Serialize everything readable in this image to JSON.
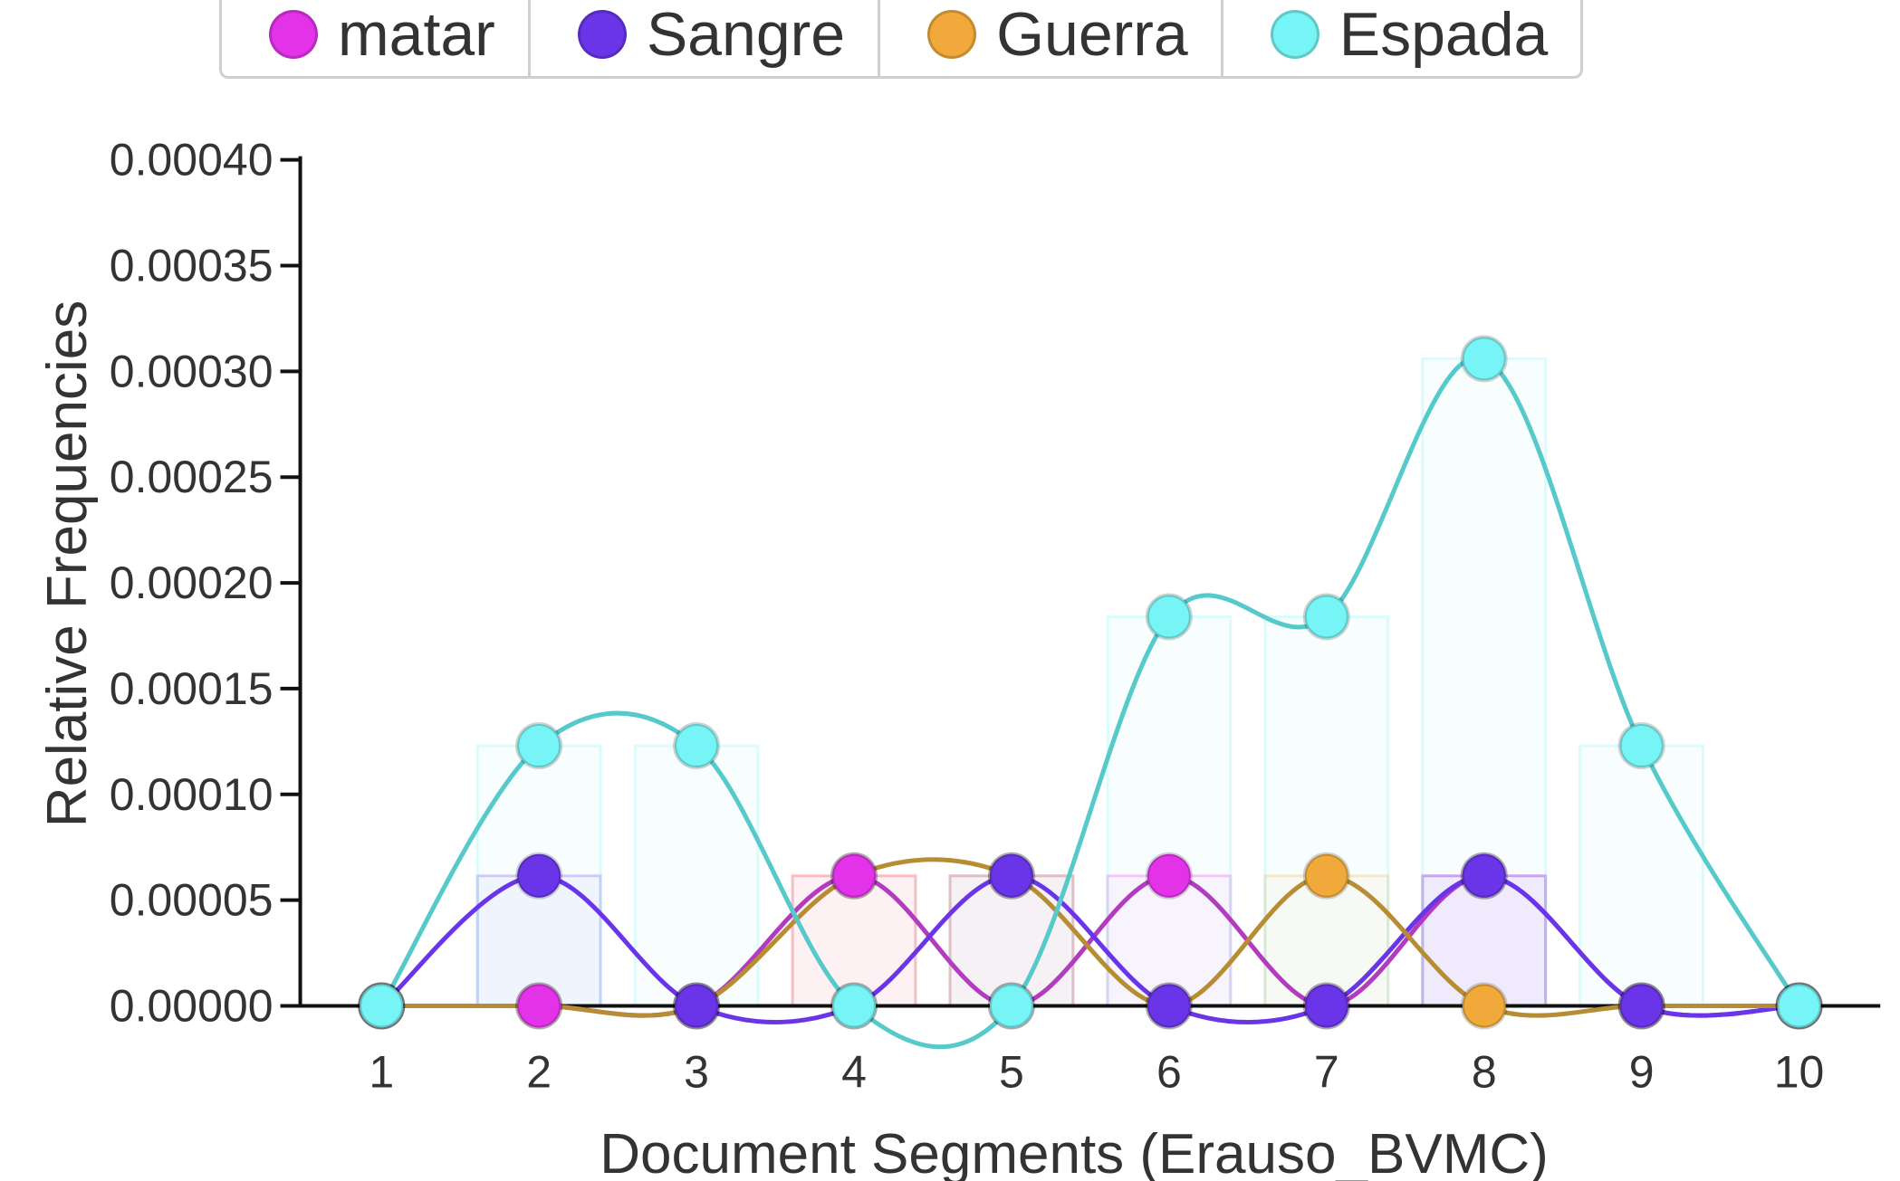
{
  "chart_data": {
    "type": "line",
    "xlabel": "Document Segments (Erauso_BVMC)",
    "ylabel": "Relative Frequencies",
    "categories": [
      "1",
      "2",
      "3",
      "4",
      "5",
      "6",
      "7",
      "8",
      "9",
      "10"
    ],
    "ylim": [
      0,
      0.0004
    ],
    "yticks": [
      "0.00000",
      "0.00005",
      "0.00010",
      "0.00015",
      "0.00020",
      "0.00025",
      "0.00030",
      "0.00035",
      "0.00040"
    ],
    "legend_position": "top",
    "smooth_lines": true,
    "bars_behind_points": true,
    "series": [
      {
        "name": "matar",
        "color": "#e233e8",
        "line_color": "#b33bbf",
        "values": [
          0,
          0,
          0,
          6.15e-05,
          0,
          6.15e-05,
          0,
          6.15e-05,
          0,
          0
        ]
      },
      {
        "name": "Sangre",
        "color": "#6a35e8",
        "line_color": "#6a35e8",
        "values": [
          0,
          6.15e-05,
          0,
          0,
          6.15e-05,
          0,
          0,
          6.15e-05,
          0,
          0
        ]
      },
      {
        "name": "Guerra",
        "color": "#f0a93a",
        "line_color": "#b78d34",
        "values": [
          0,
          0,
          0,
          6.15e-05,
          6.15e-05,
          0,
          6.15e-05,
          0,
          0,
          0
        ]
      },
      {
        "name": "Espada",
        "color": "#77f4f5",
        "line_color": "#56c9cb",
        "values": [
          0,
          0.000123,
          0.000123,
          0,
          0,
          0.000184,
          0.000184,
          0.000306,
          0.000123,
          0
        ]
      }
    ]
  }
}
